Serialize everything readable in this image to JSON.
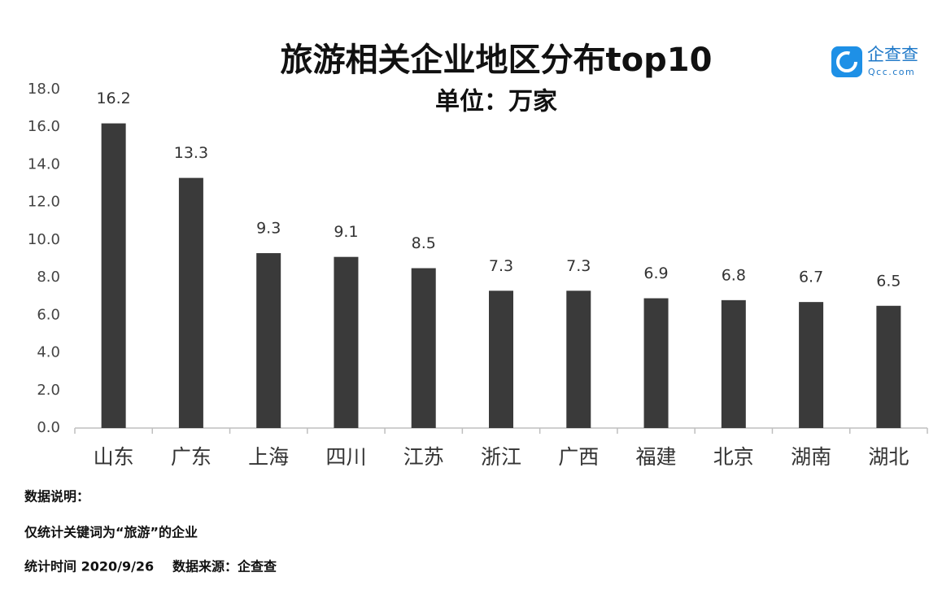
{
  "chart_data": {
    "type": "bar",
    "title": "旅游相关企业地区分布top10",
    "subtitle": "单位：万家",
    "categories": [
      "山东",
      "广东",
      "上海",
      "四川",
      "江苏",
      "浙江",
      "广西",
      "福建",
      "北京",
      "湖南",
      "湖北"
    ],
    "values": [
      16.2,
      13.3,
      9.3,
      9.1,
      8.5,
      7.3,
      7.3,
      6.9,
      6.8,
      6.7,
      6.5
    ],
    "color": "#3a3a3a",
    "ylim": [
      0,
      18
    ],
    "yticks": [
      {
        "value": 0,
        "label": "0.0"
      },
      {
        "value": 2,
        "label": "2.0"
      },
      {
        "value": 4,
        "label": "4.0"
      },
      {
        "value": 6,
        "label": "6.0"
      },
      {
        "value": 8,
        "label": "8.0"
      },
      {
        "value": 10,
        "label": "10.0"
      },
      {
        "value": 12,
        "label": "12.0"
      },
      {
        "value": 14,
        "label": "14.0"
      },
      {
        "value": 16,
        "label": "16.0"
      },
      {
        "value": 18,
        "label": "18.0"
      }
    ],
    "grid": false
  },
  "logo": {
    "name": "企查查",
    "url": "Qcc.com"
  },
  "notes": [
    "数据说明：",
    "仅统计关键词为“旅游”的企业",
    "统计时间 2020/9/26",
    "数据来源：企查查"
  ]
}
